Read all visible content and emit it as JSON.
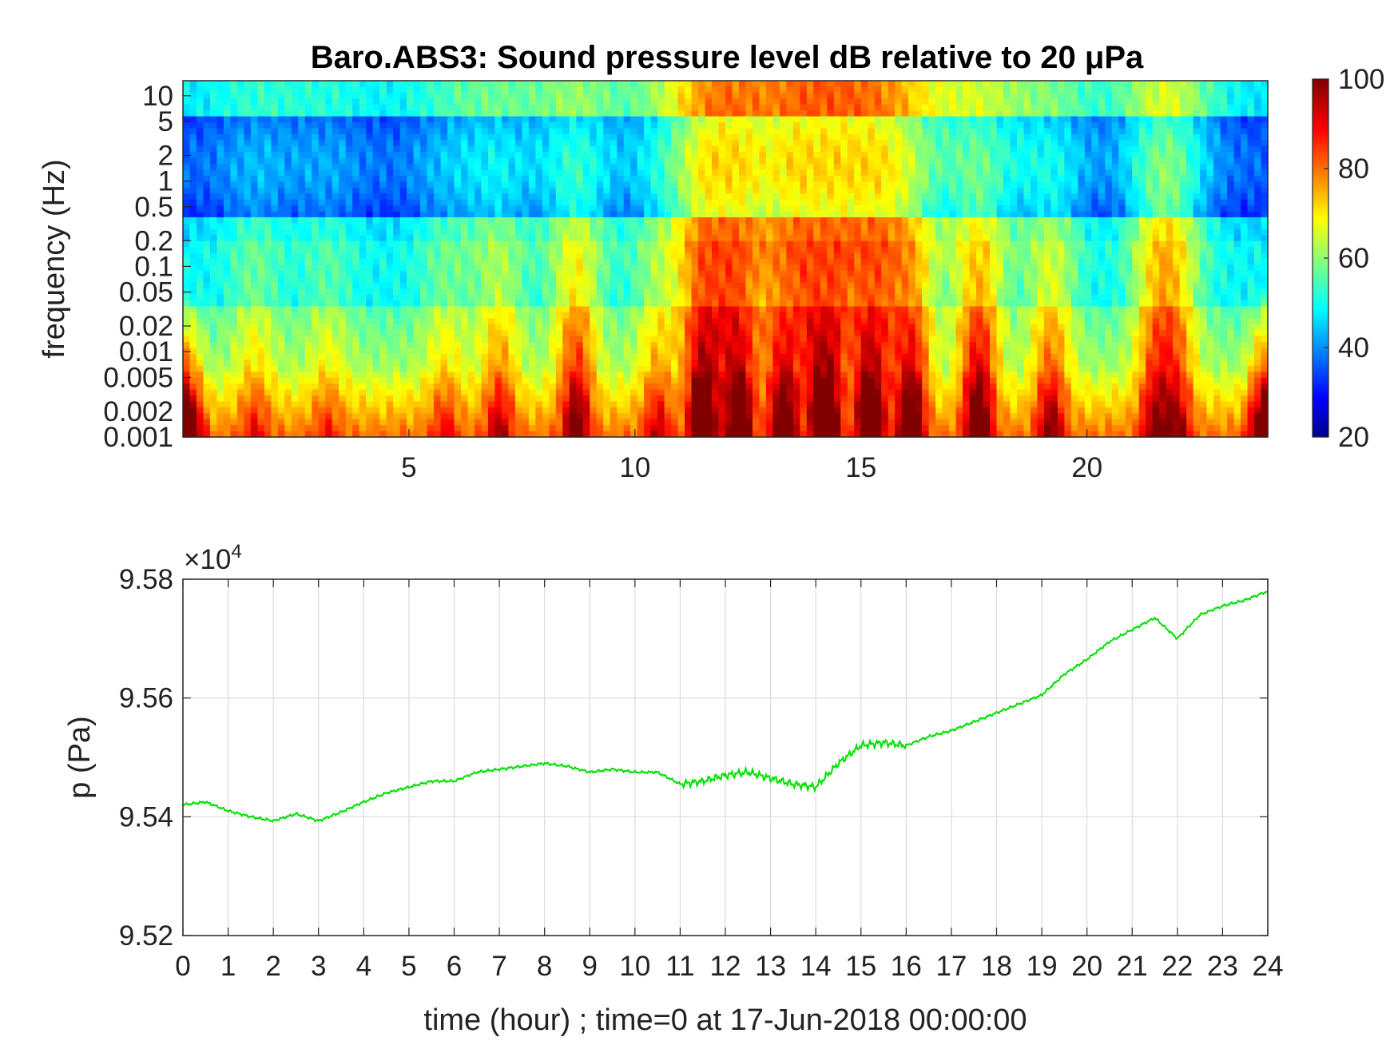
{
  "chart_data": [
    {
      "type": "heatmap",
      "title": "Baro.ABS3: Sound pressure level dB relative to 20 μPa",
      "ylabel": "frequency (Hz)",
      "xlabel": "",
      "x_range": [
        0,
        24
      ],
      "y_range": [
        0.001,
        15
      ],
      "y_scale": "log",
      "x_ticks": [
        5,
        10,
        15,
        20
      ],
      "x_tick_labels": [
        "5",
        "10",
        "15",
        "20"
      ],
      "y_ticks": [
        10,
        5,
        2,
        1,
        0.5,
        0.2,
        0.1,
        0.05,
        0.02,
        0.01,
        0.005,
        0.002,
        0.001
      ],
      "y_tick_labels": [
        "10",
        "5",
        "2",
        "1",
        "0.5",
        "0.2",
        "0.1",
        "0.05",
        "0.02",
        "0.01",
        "0.005",
        "0.002",
        "0.001"
      ],
      "colorbar": {
        "range": [
          20,
          100
        ],
        "ticks": [
          20,
          40,
          60,
          80,
          100
        ],
        "tick_labels": [
          "20",
          "40",
          "60",
          "80",
          "100"
        ],
        "colormap": "jet"
      },
      "activity_events": [
        {
          "hour": 1.6,
          "level": 0.25
        },
        {
          "hour": 3.2,
          "level": 0.2
        },
        {
          "hour": 5.8,
          "level": 0.25
        },
        {
          "hour": 7.0,
          "level": 0.4
        },
        {
          "hour": 8.7,
          "level": 0.6
        },
        {
          "hour": 10.5,
          "level": 0.35
        },
        {
          "hour": 11.5,
          "level": 0.85
        },
        {
          "hour": 12.3,
          "level": 0.8
        },
        {
          "hour": 13.3,
          "level": 0.75
        },
        {
          "hour": 14.2,
          "level": 1.0
        },
        {
          "hour": 15.2,
          "level": 0.85
        },
        {
          "hour": 16.1,
          "level": 0.75
        },
        {
          "hour": 17.6,
          "level": 0.75
        },
        {
          "hour": 19.2,
          "level": 0.5
        },
        {
          "hour": 21.5,
          "level": 0.5
        },
        {
          "hour": 22.0,
          "level": 0.45
        }
      ]
    },
    {
      "type": "line",
      "title": "",
      "xlabel": "time (hour) ; time=0 at 17-Jun-2018 00:00:00",
      "ylabel": "p (Pa)",
      "y_multiplier_label": "×10",
      "y_multiplier_exponent": "4",
      "xlim": [
        0,
        24
      ],
      "ylim": [
        95200,
        95800
      ],
      "grid": true,
      "x_ticks": [
        0,
        1,
        2,
        3,
        4,
        5,
        6,
        7,
        8,
        9,
        10,
        11,
        12,
        13,
        14,
        15,
        16,
        17,
        18,
        19,
        20,
        21,
        22,
        23,
        24
      ],
      "x_tick_labels": [
        "0",
        "1",
        "2",
        "3",
        "4",
        "5",
        "6",
        "7",
        "8",
        "9",
        "10",
        "11",
        "12",
        "13",
        "14",
        "15",
        "16",
        "17",
        "18",
        "19",
        "20",
        "21",
        "22",
        "23",
        "24"
      ],
      "y_ticks": [
        95200,
        95400,
        95600,
        95800
      ],
      "y_tick_labels": [
        "9.52",
        "9.54",
        "9.56",
        "9.58"
      ],
      "line_color": "#00e000",
      "series": [
        {
          "x": [
            0,
            0.5,
            1,
            1.5,
            2,
            2.5,
            3,
            3.5,
            4,
            4.5,
            5,
            5.5,
            6,
            6.5,
            7,
            7.5,
            8,
            8.5,
            9,
            9.5,
            10,
            10.5,
            11,
            11.5,
            12,
            12.5,
            13,
            13.5,
            14,
            14.5,
            15,
            15.5,
            16,
            16.5,
            17,
            17.5,
            18,
            18.5,
            19,
            19.5,
            20,
            20.5,
            21,
            21.5,
            22,
            22.5,
            23,
            23.5,
            24
          ],
          "y": [
            95420,
            95425,
            95410,
            95400,
            95393,
            95405,
            95393,
            95408,
            95425,
            95440,
            95450,
            95460,
            95460,
            95475,
            95480,
            95485,
            95490,
            95485,
            95475,
            95480,
            95475,
            95475,
            95455,
            95460,
            95470,
            95475,
            95465,
            95455,
            95450,
            95490,
            95520,
            95525,
            95520,
            95535,
            95545,
            95560,
            95575,
            95590,
            95605,
            95640,
            95665,
            95695,
            95715,
            95735,
            95700,
            95740,
            95755,
            95765,
            95780
          ]
        }
      ]
    }
  ]
}
